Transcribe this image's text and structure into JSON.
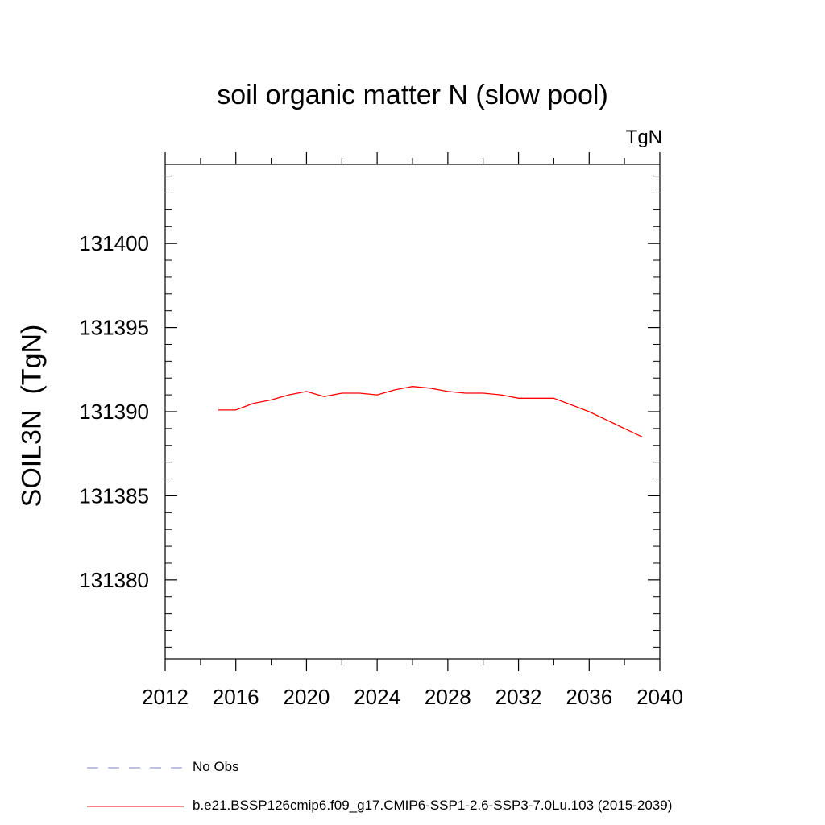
{
  "chart_data": {
    "type": "line",
    "title": "soil organic matter N (slow pool)",
    "units": "TgN",
    "xlabel": "",
    "ylabel": "SOIL3N  (TgN)",
    "xlim": [
      2012,
      2040
    ],
    "ylim": [
      131375.3,
      131404.7
    ],
    "x_ticks": [
      2012,
      2016,
      2020,
      2024,
      2028,
      2032,
      2036,
      2040
    ],
    "x_minor_step": 2,
    "y_ticks": [
      131380,
      131385,
      131390,
      131395,
      131400
    ],
    "y_minor_step": 1,
    "series": [
      {
        "name": "b.e21.BSSP126cmip6.f09_g17.CMIP6-SSP1-2.6-SSP3-7.0Lu.103 (2015-2039)",
        "color": "#ff0000",
        "style": "solid",
        "x": [
          2015,
          2016,
          2017,
          2018,
          2019,
          2020,
          2021,
          2022,
          2023,
          2024,
          2025,
          2026,
          2027,
          2028,
          2029,
          2030,
          2031,
          2032,
          2033,
          2034,
          2035,
          2036,
          2037,
          2038,
          2039
        ],
        "values": [
          131390.1,
          131390.1,
          131390.5,
          131390.7,
          131391.0,
          131391.2,
          131390.9,
          131391.1,
          131391.1,
          131391.0,
          131391.3,
          131391.5,
          131391.4,
          131391.2,
          131391.1,
          131391.1,
          131391.0,
          131390.8,
          131390.8,
          131390.8,
          131390.4,
          131390.0,
          131389.5,
          131389.0,
          131388.5
        ]
      }
    ],
    "legend": [
      {
        "label": "No Obs",
        "color": "#7f7fbf",
        "style": "dashed"
      },
      {
        "label": "b.e21.BSSP126cmip6.f09_g17.CMIP6-SSP1-2.6-SSP3-7.0Lu.103 (2015-2039)",
        "color": "#ff0000",
        "style": "solid"
      }
    ]
  }
}
